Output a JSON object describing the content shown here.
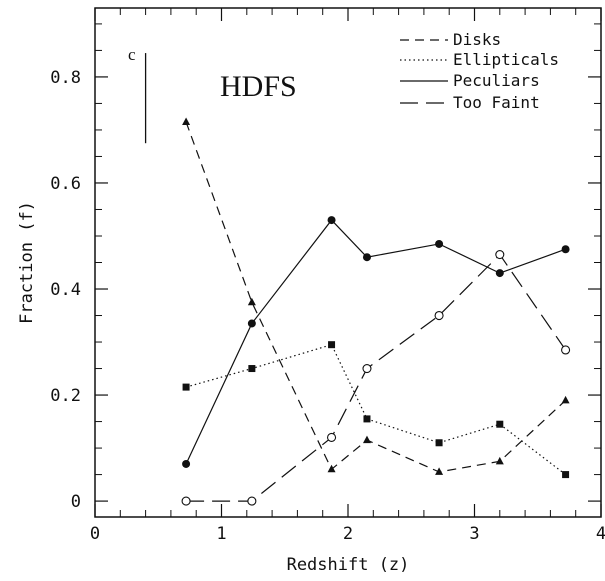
{
  "chart_data": {
    "type": "line",
    "title": "",
    "panel_label": "c",
    "field_label": "HDFS",
    "xlabel": "Redshift (z)",
    "ylabel": "Fraction (f)",
    "xlim": [
      0,
      4
    ],
    "ylim": [
      -0.03,
      0.93
    ],
    "xticks": [
      0,
      1,
      2,
      3,
      4
    ],
    "yticks": [
      0,
      0.2,
      0.4,
      0.6,
      0.8
    ],
    "xtick_labels": [
      "0",
      "1",
      "2",
      "3",
      "4"
    ],
    "ytick_labels": [
      "0",
      "0.2",
      "0.4",
      "0.6",
      "0.8"
    ],
    "error_bar": {
      "x": 0.4,
      "y_low": 0.675,
      "y_high": 0.845
    },
    "legend_position": "top-right",
    "series": [
      {
        "name": "Disks",
        "style": "dashed",
        "marker": "triangle",
        "x": [
          0.72,
          1.24,
          1.87,
          2.15,
          2.72,
          3.2,
          3.72
        ],
        "y": [
          0.715,
          0.375,
          0.06,
          0.115,
          0.055,
          0.075,
          0.19
        ]
      },
      {
        "name": "Ellipticals",
        "style": "dotted",
        "marker": "square",
        "x": [
          0.72,
          1.24,
          1.87,
          2.15,
          2.72,
          3.2,
          3.72
        ],
        "y": [
          0.215,
          0.25,
          0.295,
          0.155,
          0.11,
          0.145,
          0.05
        ]
      },
      {
        "name": "Peculiars",
        "style": "solid",
        "marker": "filled-circle",
        "x": [
          0.72,
          1.24,
          1.87,
          2.15,
          2.72,
          3.2,
          3.72
        ],
        "y": [
          0.07,
          0.335,
          0.53,
          0.46,
          0.485,
          0.43,
          0.475
        ]
      },
      {
        "name": "Too Faint",
        "style": "long-dashed",
        "marker": "open-circle",
        "x": [
          0.72,
          1.24,
          1.87,
          2.15,
          2.72,
          3.2,
          3.72
        ],
        "y": [
          0.0,
          0.0,
          0.12,
          0.25,
          0.35,
          0.465,
          0.285
        ]
      }
    ]
  }
}
